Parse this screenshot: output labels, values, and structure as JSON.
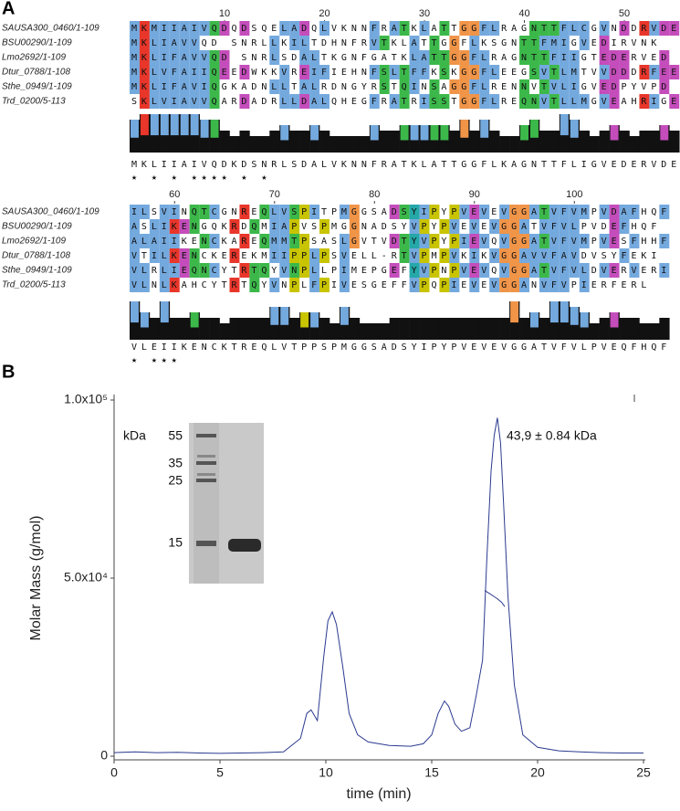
{
  "panel_labels": [
    "A",
    "B"
  ],
  "alignment": {
    "blocks": [
      {
        "ruler": [
          10,
          20,
          30,
          40,
          50
        ],
        "rows": [
          {
            "name": "SAUSA300_0460/1-109",
            "seq": "MKMIIAIVQDQDSQELADQLVKNNFRATKLATTGGFLRAGNTTFLCGVNDDRVDE"
          },
          {
            "name": "BSU00290/1-109",
            "seq": "MKLIAVVQD SNRLLKILTDHNFRVTKLATTGGFLKSGNTTFMIGVEDIRVNK"
          },
          {
            "name": "Lmo2692/1-109",
            "seq": "MKLIFAVVQD SNRLSDALTKGNFGATKLATTGGFLRAGNTTFIIGTEDERVED"
          },
          {
            "name": "Dtur_0788/1-108",
            "seq": "MKLVFAIIQEEDWKKVREIFIEHNFSLTFFKSKGGFLEEGSVTLMTVVDDDRFEE"
          },
          {
            "name": "Sthe_0949/1-109",
            "seq": "MKLIFAVIQGKADNLLTALRDNGYRSTQINSAGGFLRENNVTVLIGVEDPYVPD"
          },
          {
            "name": "Trd_0200/5-113",
            "seq": "SKLVIAVVQARDADRLLDALQHEGFRATRISSTGGFLREQNVTLLMGVEAHRIGE"
          }
        ],
        "consensus": "MKLIIAIVQDKDSNRLSDALVKNNFRATKLATTGGFLKAGNTTFLIGVEDERVDE",
        "stars": " ★         ★               ★      ★★★★  ★ ★"
      },
      {
        "ruler": [
          60,
          70,
          80,
          90,
          100
        ],
        "rows": [
          {
            "name": "SAUSA300_0460/1-109",
            "seq": "ILSVINQTCGNREQLVSPITPMGGSADSYIPYPVEVEVGGATVFVMPVDAFHQF"
          },
          {
            "name": "BSU00290/1-109",
            "seq": "ASLIKENGQKRDQMIAPVSPMGGNADSYVPYPVEVEVGGATVFVLPVDEFHQF"
          },
          {
            "name": "Lmo2692/1-109",
            "seq": "ALAIIKENCKAREQMMTPSASLGVTVDTYVPYPIEVQVGGATVFVMPVESFHHF"
          },
          {
            "name": "Dtur_0788/1-108",
            "seq": "VTILKENCKEREKMIIPPLPSVELL-RTVPMPVKIKVGGAVVFAVDVSYFEKI"
          },
          {
            "name": "Sthe_0949/1-109",
            "seq": "VLRLIEQNCYTRTQYVNPLLPIMEPGEFYVPNPVEVQVGGATVFVLDVERVERI"
          },
          {
            "name": "Trd_0200/5-113",
            "seq": "VLNLKAHCYTRTQYVNPLFPIVESGEFFVPQPIEVEVGGANVFVPIERFERL"
          }
        ],
        "consensus": "VLEIIKENCKTREQLVTPPSPMGGSADSYIPYPVEVEVGGATVFVLPVEQFHQF",
        "stars": "           ★                          ★★★"
      }
    ]
  },
  "chart_data": {
    "type": "line",
    "xlabel": "time (min)",
    "ylabel": "Molar Mass (g/mol)",
    "xlim": [
      0,
      25
    ],
    "xticks": [
      0,
      5,
      10,
      15,
      20,
      25
    ],
    "ylim": [
      0,
      100000
    ],
    "yticks": [
      0,
      {
        "value": 50000,
        "label": "5.0x10⁴"
      },
      {
        "value": 100000,
        "label": "1.0x10⁵"
      }
    ],
    "annotation": "43,9 ± 0.84 kDa",
    "series": [
      {
        "color": "#2b3a8f",
        "x": [
          0,
          1,
          2,
          3,
          4,
          5,
          6,
          7,
          8,
          8.8,
          9.1,
          9.3,
          9.6,
          9.9,
          10.1,
          10.3,
          10.5,
          10.8,
          11.1,
          11.5,
          12,
          13,
          14,
          14.6,
          15,
          15.3,
          15.6,
          15.8,
          16.1,
          16.4,
          16.8,
          17.1,
          17.4,
          17.6,
          17.8,
          17.95,
          18.1,
          18.25,
          18.4,
          18.6,
          18.9,
          19.3,
          20,
          21,
          22,
          23,
          24,
          25
        ],
        "values": [
          1000,
          1200,
          1000,
          1100,
          900,
          800,
          900,
          1000,
          1200,
          5000,
          12000,
          13000,
          10000,
          28000,
          38000,
          40500,
          37000,
          25000,
          12000,
          6000,
          4000,
          3000,
          2800,
          3500,
          6000,
          12000,
          15500,
          14000,
          9000,
          7000,
          8000,
          17000,
          27000,
          55000,
          80000,
          90000,
          95000,
          88000,
          70000,
          45000,
          20000,
          6000,
          2500,
          1500,
          1200,
          1000,
          900,
          900
        ]
      },
      {
        "color": "#2b3a8f",
        "x": [
          17.5,
          17.7,
          17.9,
          18.1,
          18.3,
          18.45
        ],
        "values": [
          46500,
          45800,
          45000,
          44200,
          43200,
          42000
        ]
      }
    ],
    "inset": {
      "unit_label": "kDa",
      "markers": [
        55,
        35,
        25,
        15
      ]
    }
  }
}
